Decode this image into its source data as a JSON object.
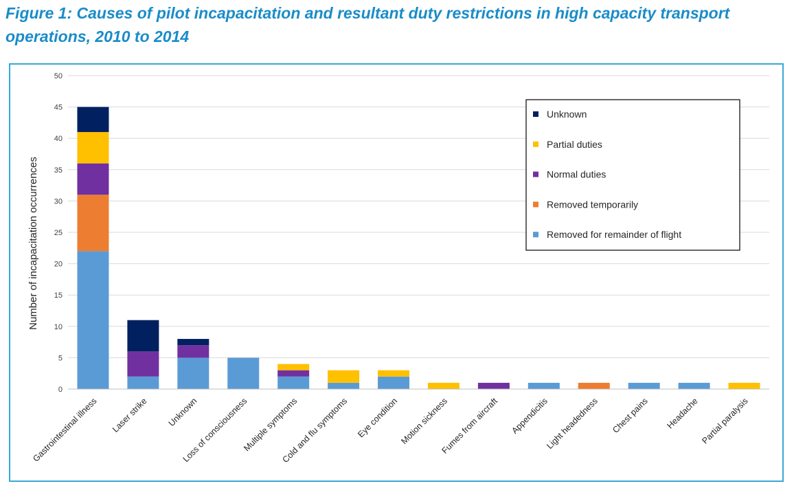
{
  "figure": {
    "title": "Figure 1: Causes of pilot incapacitation and resultant duty restrictions in high capacity transport operations, 2010 to 2014"
  },
  "chart_data": {
    "type": "bar",
    "stacked": true,
    "categories": [
      "Gastrointestinal illness",
      "Laser strike",
      "Unknown",
      "Loss of consciousness",
      "Multiple symptoms",
      "Cold and flu symptoms",
      "Eye condition",
      "Motion sickness",
      "Fumes from aircraft",
      "Appendicitis",
      "Light headedness",
      "Chest pains",
      "Headache",
      "Partial paralysis"
    ],
    "series": [
      {
        "name": "Removed for remainder of flight",
        "color": "#5b9bd5",
        "values": [
          22,
          2,
          5,
          5,
          2,
          1,
          2,
          0,
          0,
          1,
          0,
          1,
          1,
          0
        ]
      },
      {
        "name": "Removed temporarily",
        "color": "#ed7d31",
        "values": [
          9,
          0,
          0,
          0,
          0,
          0,
          0,
          0,
          0,
          0,
          1,
          0,
          0,
          0
        ]
      },
      {
        "name": "Normal duties",
        "color": "#7030a0",
        "values": [
          5,
          4,
          2,
          0,
          1,
          0,
          0,
          0,
          1,
          0,
          0,
          0,
          0,
          0
        ]
      },
      {
        "name": "Partial duties",
        "color": "#ffc000",
        "values": [
          5,
          0,
          0,
          0,
          1,
          2,
          1,
          1,
          0,
          0,
          0,
          0,
          0,
          1
        ]
      },
      {
        "name": "Unknown",
        "color": "#002060",
        "values": [
          4,
          5,
          1,
          0,
          0,
          0,
          0,
          0,
          0,
          0,
          0,
          0,
          0,
          0
        ]
      }
    ],
    "legend_order": [
      "Unknown",
      "Partial duties",
      "Normal duties",
      "Removed temporarily",
      "Removed for remainder of flight"
    ],
    "legend_position": "top-right",
    "xlabel": "",
    "ylabel": "Number of incapacitation occurrences",
    "ylim": [
      0,
      50
    ],
    "yticks": [
      0,
      5,
      10,
      15,
      20,
      25,
      30,
      35,
      40,
      45,
      50
    ],
    "grid": true,
    "gridline_color": "#d9d9d9"
  }
}
